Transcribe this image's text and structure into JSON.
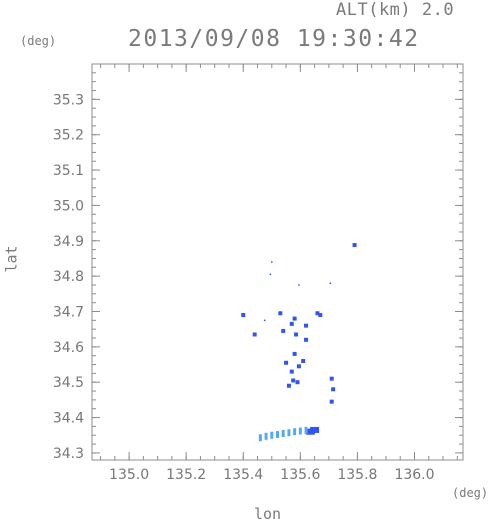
{
  "header": {
    "alt_label": "ALT(km) 2.0",
    "datetime": "2013/09/08 19:30:42"
  },
  "axes": {
    "x_label": "lon",
    "y_label": "lat",
    "x_unit": "(deg)",
    "y_unit": "(deg)"
  },
  "colors": {
    "frame": "#8c8c8c",
    "echo_strong": "#3355ee",
    "echo_medium": "#4a78f0",
    "echo_light": "#55aaee"
  },
  "chart_data": {
    "type": "scatter",
    "title": "2013/09/08 19:30:42",
    "xlabel": "lon",
    "ylabel": "lat",
    "xlim": [
      134.87,
      136.17
    ],
    "ylim": [
      34.28,
      35.4
    ],
    "x_ticks": [
      "135.0",
      "135.2",
      "135.4",
      "135.6",
      "135.8",
      "136.0"
    ],
    "y_ticks": [
      "34.3",
      "34.4",
      "34.5",
      "34.6",
      "34.7",
      "34.8",
      "34.9",
      "35.0",
      "35.1",
      "35.2",
      "35.3"
    ],
    "grid": false,
    "series": [
      {
        "color": "#3355ee",
        "points": [
          {
            "x": 135.4,
            "y": 34.69
          },
          {
            "x": 135.44,
            "y": 34.635
          },
          {
            "x": 135.53,
            "y": 34.695
          },
          {
            "x": 135.54,
            "y": 34.645
          },
          {
            "x": 135.57,
            "y": 34.665
          },
          {
            "x": 135.58,
            "y": 34.68
          },
          {
            "x": 135.585,
            "y": 34.635
          },
          {
            "x": 135.62,
            "y": 34.66
          },
          {
            "x": 135.66,
            "y": 34.695
          },
          {
            "x": 135.67,
            "y": 34.69
          },
          {
            "x": 135.62,
            "y": 34.62
          },
          {
            "x": 135.61,
            "y": 34.56
          },
          {
            "x": 135.595,
            "y": 34.545
          },
          {
            "x": 135.58,
            "y": 34.58
          },
          {
            "x": 135.57,
            "y": 34.53
          },
          {
            "x": 135.575,
            "y": 34.505
          },
          {
            "x": 135.59,
            "y": 34.5
          },
          {
            "x": 135.55,
            "y": 34.555
          },
          {
            "x": 135.56,
            "y": 34.49
          },
          {
            "x": 135.71,
            "y": 34.445
          },
          {
            "x": 135.715,
            "y": 34.48
          },
          {
            "x": 135.71,
            "y": 34.51
          },
          {
            "x": 135.79,
            "y": 34.888
          },
          {
            "x": 135.65,
            "y": 34.365
          },
          {
            "x": 135.635,
            "y": 34.36
          },
          {
            "x": 135.5,
            "y": 34.84
          },
          {
            "x": 135.495,
            "y": 34.805
          },
          {
            "x": 135.595,
            "y": 34.775
          },
          {
            "x": 135.705,
            "y": 34.78
          },
          {
            "x": 135.475,
            "y": 34.675
          }
        ]
      },
      {
        "color": "#55aaee",
        "points": [
          {
            "x": 135.46,
            "y": 34.343
          },
          {
            "x": 135.48,
            "y": 34.347
          },
          {
            "x": 135.5,
            "y": 34.35
          },
          {
            "x": 135.52,
            "y": 34.352
          },
          {
            "x": 135.54,
            "y": 34.355
          },
          {
            "x": 135.56,
            "y": 34.357
          },
          {
            "x": 135.58,
            "y": 34.36
          },
          {
            "x": 135.6,
            "y": 34.362
          },
          {
            "x": 135.62,
            "y": 34.364
          }
        ]
      }
    ]
  }
}
